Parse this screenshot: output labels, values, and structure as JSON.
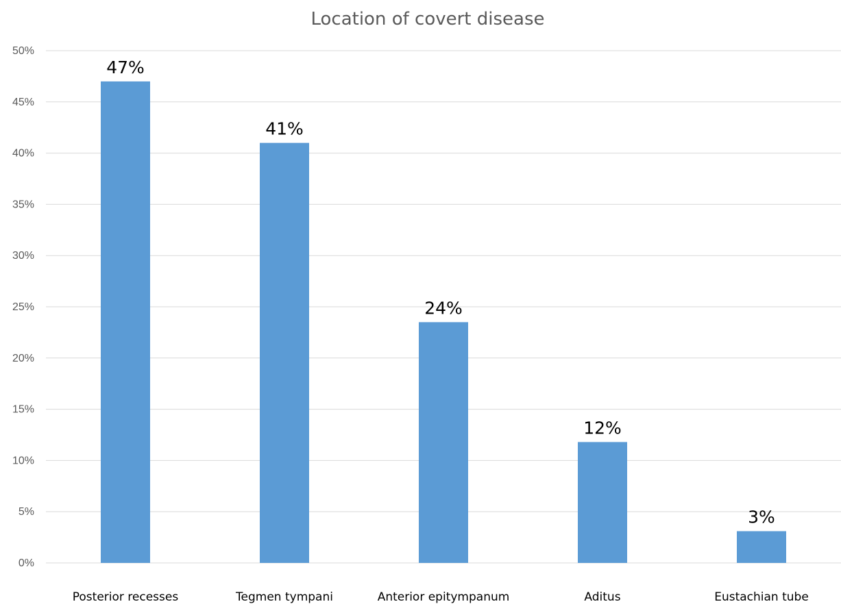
{
  "chart_data": {
    "type": "bar",
    "title": "Location of covert disease",
    "categories": [
      "Posterior recesses",
      "Tegmen tympani",
      "Anterior epitympanum",
      "Aditus",
      "Eustachian tube"
    ],
    "values": [
      47,
      41,
      23.5,
      11.8,
      3.1
    ],
    "data_labels": [
      "47%",
      "41%",
      "24%",
      "12%",
      "3%"
    ],
    "y_ticks": [
      0,
      5,
      10,
      15,
      20,
      25,
      30,
      35,
      40,
      45,
      50
    ],
    "y_tick_labels": [
      "0%",
      "5%",
      "10%",
      "15%",
      "20%",
      "25%",
      "30%",
      "35%",
      "40%",
      "45%",
      "50%"
    ],
    "ylim": [
      0,
      50
    ],
    "xlabel": "",
    "ylabel": "",
    "grid": true,
    "legend": "none",
    "bar_color": "#5b9bd5",
    "grid_color": "#d9d9d9"
  }
}
